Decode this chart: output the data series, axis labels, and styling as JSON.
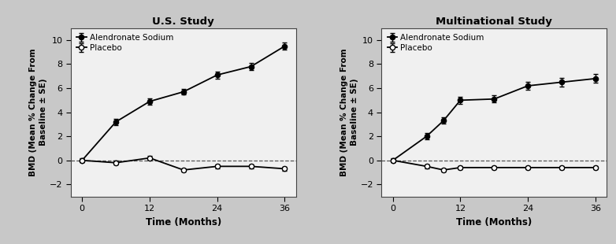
{
  "us_study": {
    "title": "U.S. Study",
    "alendronate": {
      "x": [
        0,
        6,
        12,
        18,
        24,
        30,
        36
      ],
      "y": [
        0.0,
        3.2,
        4.9,
        5.7,
        7.1,
        7.8,
        9.5
      ],
      "yerr": [
        0.15,
        0.25,
        0.25,
        0.25,
        0.3,
        0.3,
        0.3
      ]
    },
    "placebo": {
      "x": [
        0,
        6,
        12,
        18,
        24,
        30,
        36
      ],
      "y": [
        0.0,
        -0.2,
        0.2,
        -0.8,
        -0.5,
        -0.5,
        -0.7
      ],
      "yerr": [
        0.1,
        0.15,
        0.15,
        0.15,
        0.15,
        0.15,
        0.15
      ]
    }
  },
  "multi_study": {
    "title": "Multinational Study",
    "alendronate": {
      "x": [
        0,
        6,
        9,
        12,
        18,
        24,
        30,
        36
      ],
      "y": [
        0.0,
        2.0,
        3.3,
        5.0,
        5.1,
        6.2,
        6.5,
        6.8
      ],
      "yerr": [
        0.15,
        0.25,
        0.25,
        0.3,
        0.3,
        0.35,
        0.35,
        0.35
      ]
    },
    "placebo": {
      "x": [
        0,
        6,
        9,
        12,
        18,
        24,
        30,
        36
      ],
      "y": [
        0.0,
        -0.5,
        -0.8,
        -0.6,
        -0.6,
        -0.6,
        -0.6,
        -0.6
      ],
      "yerr": [
        0.1,
        0.15,
        0.15,
        0.15,
        0.15,
        0.15,
        0.15,
        0.15
      ]
    }
  },
  "ylabel": "BMD (Mean % Change From\nBaseline ± SE)",
  "xlabel": "Time (Months)",
  "ylim": [
    -3,
    11
  ],
  "yticks": [
    -2,
    0,
    2,
    4,
    6,
    8,
    10
  ],
  "xticks": [
    0,
    12,
    24,
    36
  ],
  "legend_alendronate": "Alendronate Sodium",
  "legend_placebo": "Placebo",
  "line_color": "#000000",
  "plot_bg": "#f0f0f0",
  "fig_bg": "#c8c8c8"
}
